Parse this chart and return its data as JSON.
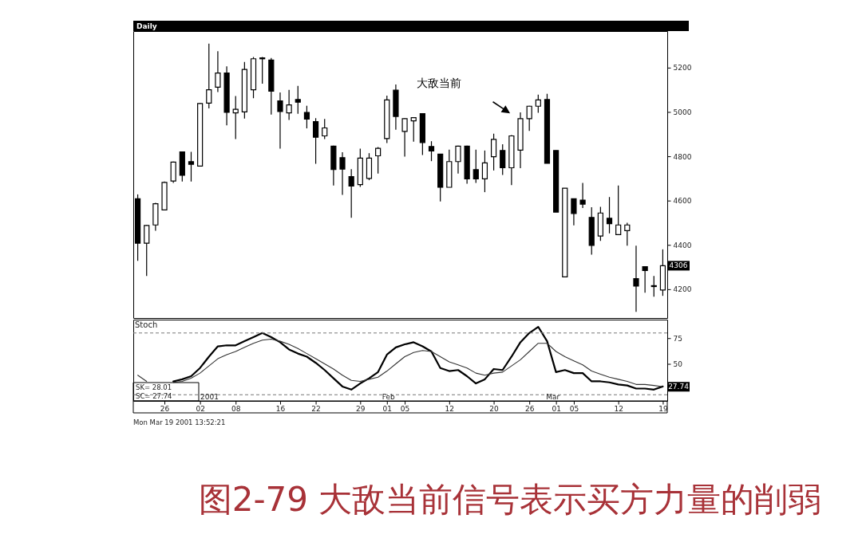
{
  "chart_data": [
    {
      "type": "candlestick",
      "title": "Daily",
      "categories": [
        null,
        null,
        null,
        "26",
        null,
        null,
        null,
        "02",
        null,
        null,
        null,
        "08",
        null,
        null,
        null,
        null,
        "16",
        null,
        null,
        null,
        "22",
        null,
        null,
        null,
        null,
        "29",
        null,
        null,
        "01",
        null,
        "05",
        null,
        null,
        null,
        null,
        "12",
        null,
        null,
        null,
        null,
        "20",
        null,
        null,
        null,
        "26",
        null,
        null,
        "01",
        null,
        "05",
        null,
        null,
        null,
        null,
        "12",
        null,
        null,
        null,
        null,
        "19"
      ],
      "ohlc": [
        [
          4608,
          4628,
          4328,
          4408
        ],
        [
          4408,
          4490,
          4260,
          4488
        ],
        [
          4490,
          4590,
          4464,
          4586
        ],
        [
          4558,
          4686,
          4558,
          4682
        ],
        [
          4688,
          4776,
          4680,
          4774
        ],
        [
          4820,
          4822,
          4686,
          4714
        ],
        [
          4776,
          4820,
          4686,
          4764
        ],
        [
          4756,
          5040,
          4756,
          5038
        ],
        [
          5040,
          5308,
          5016,
          5100
        ],
        [
          5112,
          5274,
          5090,
          5176
        ],
        [
          5176,
          5206,
          4940,
          4998
        ],
        [
          4996,
          5072,
          4878,
          5012
        ],
        [
          5000,
          5226,
          4970,
          5192
        ],
        [
          5100,
          5248,
          5062,
          5240
        ],
        [
          5244,
          5248,
          5128,
          5240
        ],
        [
          5234,
          5244,
          4988,
          5094
        ],
        [
          5050,
          5088,
          4834,
          5002
        ],
        [
          4996,
          5100,
          4964,
          5032
        ],
        [
          5056,
          5118,
          4992,
          5044
        ],
        [
          4998,
          5028,
          4926,
          4968
        ],
        [
          4956,
          4972,
          4766,
          4886
        ],
        [
          4892,
          4968,
          4878,
          4928
        ],
        [
          4846,
          4848,
          4668,
          4740
        ],
        [
          4794,
          4818,
          4626,
          4742
        ],
        [
          4708,
          4742,
          4522,
          4666
        ],
        [
          4672,
          4834,
          4662,
          4792
        ],
        [
          4700,
          4814,
          4692,
          4792
        ],
        [
          4802,
          4842,
          4722,
          4836
        ],
        [
          4880,
          5074,
          4860,
          5054
        ],
        [
          5098,
          5124,
          4920,
          4980
        ],
        [
          4912,
          4972,
          4798,
          4970
        ],
        [
          4960,
          4976,
          4866,
          4974
        ],
        [
          4992,
          4992,
          4806,
          4862
        ],
        [
          4844,
          4868,
          4778,
          4824
        ],
        [
          4810,
          4810,
          4596,
          4660
        ],
        [
          4660,
          4830,
          4660,
          4776
        ],
        [
          4776,
          4848,
          4722,
          4846
        ],
        [
          4846,
          4848,
          4676,
          4698
        ],
        [
          4740,
          4830,
          4680,
          4698
        ],
        [
          4698,
          4826,
          4638,
          4770
        ],
        [
          4798,
          4902,
          4736,
          4876
        ],
        [
          4826,
          4854,
          4716,
          4748
        ],
        [
          4748,
          4896,
          4670,
          4892
        ],
        [
          4828,
          4998,
          4746,
          4970
        ],
        [
          4970,
          5028,
          4914,
          5026
        ],
        [
          5026,
          5078,
          4996,
          5054
        ],
        [
          5056,
          5082,
          4768,
          4768
        ],
        [
          4826,
          4826,
          4548,
          4548
        ],
        [
          4256,
          4656,
          4256,
          4656
        ],
        [
          4608,
          4608,
          4488,
          4542
        ],
        [
          4602,
          4680,
          4566,
          4584
        ],
        [
          4524,
          4570,
          4356,
          4398
        ],
        [
          4440,
          4572,
          4418,
          4544
        ],
        [
          4520,
          4616,
          4452,
          4496
        ],
        [
          4446,
          4668,
          4444,
          4490
        ],
        [
          4464,
          4500,
          4396,
          4490
        ],
        [
          4248,
          4396,
          4098,
          4214
        ],
        [
          4302,
          4304,
          4184,
          4284
        ],
        [
          4216,
          4260,
          4166,
          4212
        ],
        [
          4196,
          4380,
          4170,
          4306
        ]
      ],
      "color": "#000000",
      "ylim": [
        4070,
        5365
      ],
      "yticks": [
        4200,
        4400,
        4600,
        4800,
        5000,
        5200
      ],
      "tick_labels": "y",
      "annotations": [
        "大敌当前",
        {
          "text": "4306",
          "y": 4306
        }
      ]
    },
    {
      "type": "line",
      "title": "Stoch",
      "categories": [
        null,
        null,
        null,
        "26",
        null,
        null,
        null,
        "02",
        null,
        null,
        null,
        "08",
        null,
        null,
        null,
        null,
        "16",
        null,
        null,
        null,
        "22",
        null,
        null,
        null,
        null,
        "29",
        null,
        null,
        "01",
        null,
        "05",
        null,
        null,
        null,
        null,
        "12",
        null,
        null,
        null,
        null,
        "20",
        null,
        null,
        null,
        "26",
        null,
        null,
        "01",
        null,
        "05",
        null,
        null,
        null,
        null,
        "12",
        null,
        null,
        null,
        null,
        "19"
      ],
      "series": [
        {
          "color": "#000000",
          "values": [
            null,
            null,
            null,
            null,
            33,
            35,
            38,
            46,
            57,
            67,
            68,
            68,
            72,
            76,
            80,
            76,
            71,
            64,
            60,
            57,
            51,
            44,
            36,
            28,
            25,
            31,
            36,
            42,
            59,
            66,
            69,
            71,
            67,
            62,
            46,
            43,
            44,
            38,
            31,
            35,
            45,
            44,
            57,
            71,
            80,
            86,
            72,
            42,
            44,
            41,
            41,
            33,
            33,
            32,
            30,
            29,
            26,
            26,
            25,
            28.01
          ]
        },
        {
          "color": "#333333",
          "values": [
            39,
            33,
            null,
            null,
            32,
            33,
            36,
            41,
            48,
            55,
            59,
            62,
            66,
            70,
            73,
            74,
            72,
            69,
            65,
            60,
            55,
            50,
            45,
            39,
            34,
            33,
            35,
            37,
            43,
            50,
            57,
            61,
            63,
            62,
            57,
            52,
            49,
            46,
            41,
            39,
            41,
            42,
            48,
            54,
            62,
            70,
            70,
            62,
            57,
            53,
            49,
            43,
            40,
            37,
            35,
            33,
            30,
            30,
            29,
            27.74
          ]
        }
      ],
      "ylim": [
        14,
        93
      ],
      "yticks": [
        50,
        75
      ],
      "ref_lines": [
        {
          "axis": "y",
          "value": 80,
          "line_style": "dashed",
          "color": "#777777"
        },
        {
          "axis": "y",
          "value": 20,
          "line_style": "dashed",
          "color": "#777777"
        }
      ],
      "annotations": [
        "SK= 28.01",
        "SC= 27.74",
        {
          "text": "27.74",
          "y": 27.74
        },
        "2001",
        "Feb",
        "Mar",
        "Mon Mar 19 2001 13:52:21",
        "图2-79 大敌当前信号表示买方力量的削弱"
      ]
    }
  ]
}
